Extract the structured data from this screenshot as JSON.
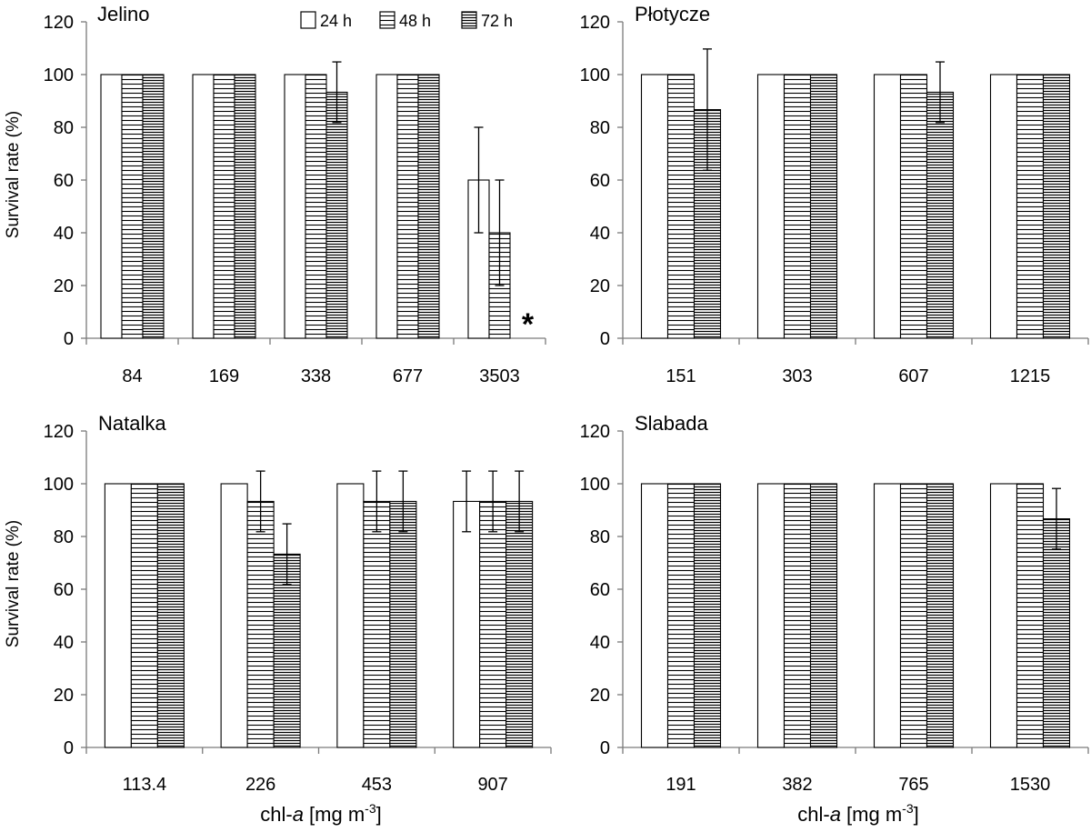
{
  "legend": [
    {
      "key": "24 h",
      "label": "24 h"
    },
    {
      "key": "48 h",
      "label": "48 h"
    },
    {
      "key": "72 h",
      "label": "72 h"
    }
  ],
  "ylabel": "Survival rate (%)",
  "xlabel": {
    "prefix": "chl-",
    "italic": "a",
    "rest": " [mg m",
    "sup": "-3",
    "close": "]"
  },
  "chart_data": [
    {
      "type": "bar",
      "title": "Jelino",
      "ylabel": "Survival rate (%)",
      "ylim": [
        0,
        120
      ],
      "yticks": [
        0,
        20,
        40,
        60,
        80,
        100,
        120
      ],
      "categories": [
        "84",
        "169",
        "338",
        "677",
        "3503"
      ],
      "series": [
        {
          "name": "24 h",
          "values": [
            100,
            100,
            100,
            100,
            60
          ],
          "errors": [
            0,
            0,
            0,
            0,
            20
          ]
        },
        {
          "name": "48 h",
          "values": [
            100,
            100,
            100,
            100,
            40
          ],
          "errors": [
            0,
            0,
            0,
            0,
            20
          ]
        },
        {
          "name": "72 h",
          "values": [
            100,
            100,
            93.3,
            100,
            0
          ],
          "errors": [
            0,
            0,
            11.5,
            0,
            0
          ]
        }
      ],
      "annotations": [
        {
          "text": "*",
          "category": "3503",
          "series": "72 h"
        }
      ]
    },
    {
      "type": "bar",
      "title": "Płotycze",
      "ylim": [
        0,
        120
      ],
      "yticks": [
        0,
        20,
        40,
        60,
        80,
        100,
        120
      ],
      "categories": [
        "151",
        "303",
        "607",
        "1215"
      ],
      "series": [
        {
          "name": "24 h",
          "values": [
            100,
            100,
            100,
            100
          ],
          "errors": [
            0,
            0,
            0,
            0
          ]
        },
        {
          "name": "48 h",
          "values": [
            100,
            100,
            100,
            100
          ],
          "errors": [
            0,
            0,
            0,
            0
          ]
        },
        {
          "name": "72 h",
          "values": [
            86.7,
            100,
            93.3,
            100
          ],
          "errors": [
            23,
            0,
            11.5,
            0
          ]
        }
      ]
    },
    {
      "type": "bar",
      "title": "Natalka",
      "ylabel": "Survival rate (%)",
      "ylim": [
        0,
        120
      ],
      "yticks": [
        0,
        20,
        40,
        60,
        80,
        100,
        120
      ],
      "categories": [
        "113.4",
        "226",
        "453",
        "907"
      ],
      "series": [
        {
          "name": "24 h",
          "values": [
            100,
            100,
            100,
            93.3
          ],
          "errors": [
            0,
            0,
            0,
            11.5
          ]
        },
        {
          "name": "48 h",
          "values": [
            100,
            93.3,
            93.3,
            93.3
          ],
          "errors": [
            0,
            11.5,
            11.5,
            11.5
          ]
        },
        {
          "name": "72 h",
          "values": [
            100,
            73.3,
            93.3,
            93.3
          ],
          "errors": [
            0,
            11.5,
            11.5,
            11.5
          ]
        }
      ]
    },
    {
      "type": "bar",
      "title": "Slabada",
      "ylim": [
        0,
        120
      ],
      "yticks": [
        0,
        20,
        40,
        60,
        80,
        100,
        120
      ],
      "categories": [
        "191",
        "382",
        "765",
        "1530"
      ],
      "series": [
        {
          "name": "24 h",
          "values": [
            100,
            100,
            100,
            100
          ],
          "errors": [
            0,
            0,
            0,
            0
          ]
        },
        {
          "name": "48 h",
          "values": [
            100,
            100,
            100,
            100
          ],
          "errors": [
            0,
            0,
            0,
            0
          ]
        },
        {
          "name": "72 h",
          "values": [
            100,
            100,
            100,
            86.7
          ],
          "errors": [
            0,
            0,
            0,
            11.5
          ]
        }
      ]
    }
  ]
}
